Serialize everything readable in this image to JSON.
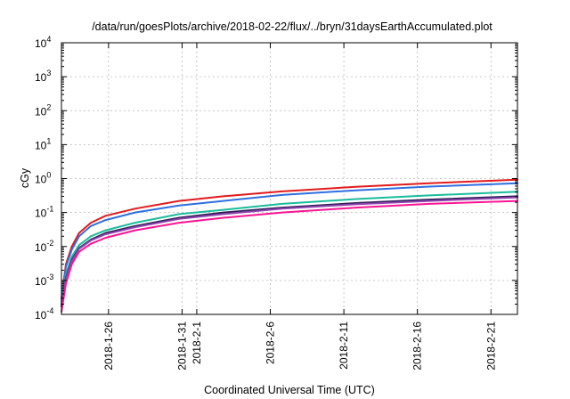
{
  "chart_data": {
    "type": "line",
    "title": "/data/run/goesPlots/archive/2018-02-22/flux/../bryn/31daysEarthAccumulated.plot",
    "xlabel": "Coordinated Universal Time (UTC)",
    "ylabel": "cGy",
    "yscale": "log",
    "ylim": [
      0.0001,
      10000
    ],
    "xlim_days": [
      0,
      31
    ],
    "y_ticks": [
      {
        "value": 0.0001,
        "base": "10",
        "exp": "-4"
      },
      {
        "value": 0.001,
        "base": "10",
        "exp": "-3"
      },
      {
        "value": 0.01,
        "base": "10",
        "exp": "-2"
      },
      {
        "value": 0.1,
        "base": "10",
        "exp": "-1"
      },
      {
        "value": 1,
        "base": "10",
        "exp": "0"
      },
      {
        "value": 10,
        "base": "10",
        "exp": "1"
      },
      {
        "value": 100,
        "base": "10",
        "exp": "2"
      },
      {
        "value": 1000,
        "base": "10",
        "exp": "3"
      },
      {
        "value": 10000,
        "base": "10",
        "exp": "4"
      }
    ],
    "x_ticks": [
      {
        "day": 3.2,
        "label": "2018-1-26"
      },
      {
        "day": 8.2,
        "label": "2018-1-31"
      },
      {
        "day": 9.2,
        "label": "2018-2-1"
      },
      {
        "day": 14.2,
        "label": "2018-2-6"
      },
      {
        "day": 19.2,
        "label": "2018-2-11"
      },
      {
        "day": 24.2,
        "label": "2018-2-16"
      },
      {
        "day": 29.2,
        "label": "2018-2-21"
      }
    ],
    "x": [
      0,
      0.3,
      0.7,
      1.2,
      2,
      3,
      5,
      8,
      11,
      15,
      20,
      25,
      31
    ],
    "series": [
      {
        "name": "red",
        "color": "#e41a1c",
        "values": [
          0.0003,
          0.003,
          0.01,
          0.025,
          0.05,
          0.08,
          0.13,
          0.22,
          0.3,
          0.42,
          0.57,
          0.73,
          0.93
        ]
      },
      {
        "name": "blue",
        "color": "#2f6fe0",
        "values": [
          0.00025,
          0.0025,
          0.008,
          0.02,
          0.04,
          0.06,
          0.1,
          0.16,
          0.22,
          0.33,
          0.45,
          0.58,
          0.73
        ]
      },
      {
        "name": "teal",
        "color": "#1abc9c",
        "values": [
          0.0002,
          0.0015,
          0.005,
          0.011,
          0.02,
          0.03,
          0.05,
          0.09,
          0.12,
          0.18,
          0.25,
          0.32,
          0.41
        ]
      },
      {
        "name": "dark-purple",
        "color": "#2e1d56",
        "values": [
          0.00018,
          0.0012,
          0.004,
          0.009,
          0.016,
          0.025,
          0.04,
          0.07,
          0.1,
          0.14,
          0.19,
          0.24,
          0.3
        ]
      },
      {
        "name": "purple",
        "color": "#8e44ad",
        "values": [
          0.00017,
          0.0011,
          0.0037,
          0.0085,
          0.015,
          0.023,
          0.037,
          0.065,
          0.09,
          0.13,
          0.175,
          0.22,
          0.28
        ]
      },
      {
        "name": "magenta",
        "color": "#ff1493",
        "values": [
          0.00012,
          0.0008,
          0.003,
          0.007,
          0.012,
          0.018,
          0.03,
          0.05,
          0.07,
          0.1,
          0.14,
          0.18,
          0.22
        ]
      }
    ]
  }
}
